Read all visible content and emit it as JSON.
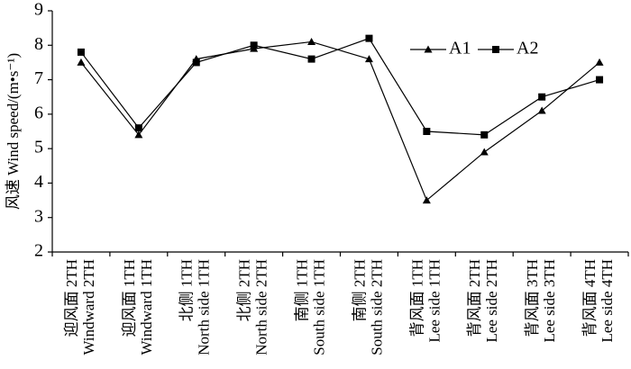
{
  "chart_data": {
    "type": "line",
    "y_label": "风速 Wind speed/(m•s⁻¹)",
    "categories": [
      [
        "迎风面  2TH",
        "Windward 2TH"
      ],
      [
        "迎风面  1TH",
        "Windward 1TH"
      ],
      [
        "北侧  1TH",
        "North side 1TH"
      ],
      [
        "北侧  2TH",
        "North side 2TH"
      ],
      [
        "南侧  1TH",
        "South side 1TH"
      ],
      [
        "南侧  2TH",
        "South side 2TH"
      ],
      [
        "背风面  1TH",
        "Lee side 1TH"
      ],
      [
        "背风面  2TH",
        "Lee side 2TH"
      ],
      [
        "背风面  3TH",
        "Lee side 3TH"
      ],
      [
        "背风面  4TH",
        "Lee side 4TH"
      ]
    ],
    "series": [
      {
        "name": "A1",
        "color": "#000000",
        "marker": "triangle",
        "values": [
          7.5,
          5.4,
          7.6,
          7.9,
          8.1,
          7.6,
          3.5,
          4.9,
          6.1,
          7.5
        ]
      },
      {
        "name": "A2",
        "color": "#000000",
        "marker": "square",
        "values": [
          7.8,
          5.6,
          7.5,
          8.0,
          7.6,
          8.2,
          5.5,
          5.4,
          6.5,
          7.0
        ]
      }
    ],
    "ylim": [
      2,
      9
    ],
    "yticks": [
      2,
      3,
      4,
      5,
      6,
      7,
      8,
      9
    ],
    "legend": "upper right"
  }
}
